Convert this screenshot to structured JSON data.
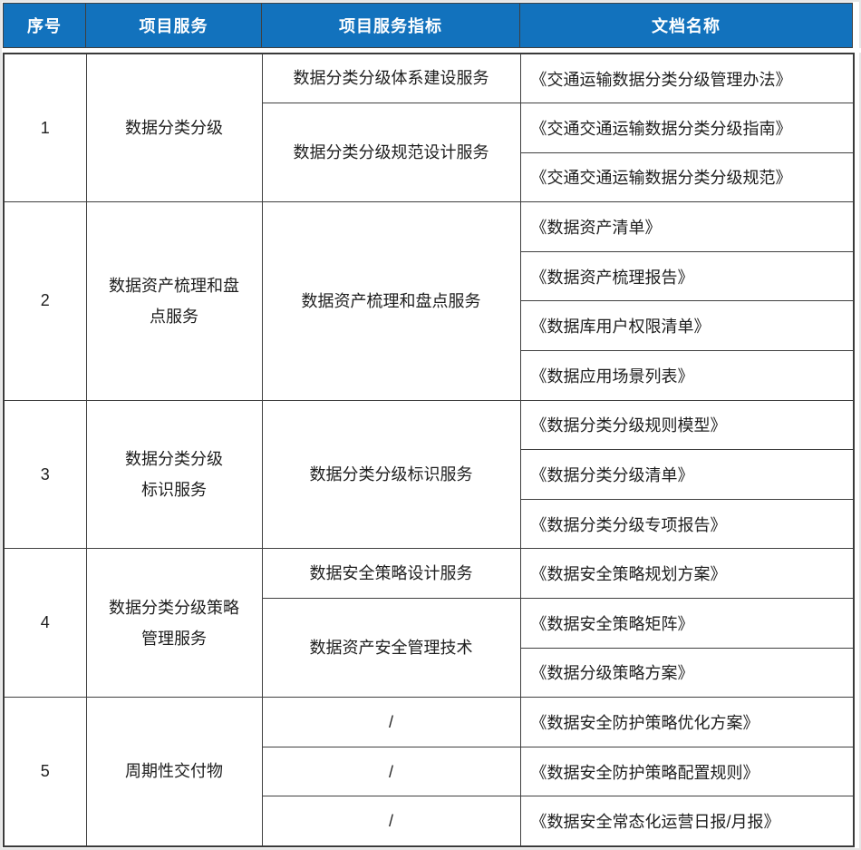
{
  "colors": {
    "header_bg": "#1272BD",
    "header_text": "#FFFFFF",
    "border": "#3F3F3F",
    "body_text": "#1E1E1E"
  },
  "table": {
    "headers": [
      "序号",
      "项目服务",
      "项目服务指标",
      "文档名称"
    ],
    "groups": [
      {
        "no": "1",
        "service": "数据分类分级",
        "indicators": [
          {
            "label": "数据分类分级体系建设服务",
            "docs": [
              "《交通运输数据分类分级管理办法》"
            ]
          },
          {
            "label": "数据分类分级规范设计服务",
            "docs": [
              "《交通交通运输数据分类分级指南》",
              "《交通交通运输数据分类分级规范》"
            ]
          }
        ]
      },
      {
        "no": "2",
        "service": "数据资产梳理和盘\n点服务",
        "indicators": [
          {
            "label": "数据资产梳理和盘点服务",
            "docs": [
              "《数据资产清单》",
              "《数据资产梳理报告》",
              "《数据库用户权限清单》",
              "《数据应用场景列表》"
            ]
          }
        ]
      },
      {
        "no": "3",
        "service": "数据分类分级\n标识服务",
        "indicators": [
          {
            "label": "数据分类分级标识服务",
            "docs": [
              "《数据分类分级规则模型》",
              "《数据分类分级清单》",
              "《数据分类分级专项报告》"
            ]
          }
        ]
      },
      {
        "no": "4",
        "service": "数据分类分级策略\n管理服务",
        "indicators": [
          {
            "label": "数据安全策略设计服务",
            "docs": [
              "《数据安全策略规划方案》"
            ]
          },
          {
            "label": "数据资产安全管理技术",
            "docs": [
              "《数据安全策略矩阵》",
              "《数据分级策略方案》"
            ]
          }
        ]
      },
      {
        "no": "5",
        "service": "周期性交付物",
        "indicators": [
          {
            "label": "/",
            "docs": [
              "《数据安全防护策略优化方案》"
            ]
          },
          {
            "label": "/",
            "docs": [
              "《数据安全防护策略配置规则》"
            ]
          },
          {
            "label": "/",
            "docs": [
              "《数据安全常态化运营日报/月报》"
            ]
          }
        ]
      }
    ]
  }
}
